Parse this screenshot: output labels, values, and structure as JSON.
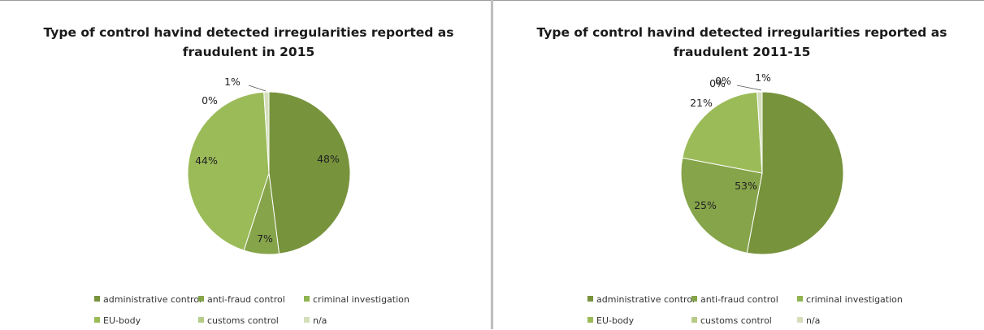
{
  "colors": {
    "administrative control": "#77933c",
    "anti-fraud control": "#86a44a",
    "criminal investigation": "#8fb451",
    "EU-body": "#9bbb59",
    "customs control": "#b5cb88",
    "n/a": "#d3dfbb"
  },
  "chart_data": [
    {
      "type": "pie",
      "title_lines": [
        "Type of control havind detected irregularities reported as",
        "fraudulent in 2015"
      ],
      "categories": [
        "administrative control",
        "anti-fraud control",
        "criminal investigation",
        "EU-body",
        "customs control",
        "n/a"
      ],
      "values": [
        48,
        7,
        0,
        44,
        0,
        1
      ],
      "data_labels": [
        "48%",
        "7%",
        "",
        "44%",
        "0%",
        "1%"
      ],
      "legend": {
        "position": "bottom",
        "rows": [
          [
            "administrative control",
            "anti-fraud control",
            "criminal investigation"
          ],
          [
            "EU-body",
            "customs control",
            "n/a"
          ]
        ]
      }
    },
    {
      "type": "pie",
      "title_lines": [
        "Type of control havind detected irregularities reported as",
        "fraudulent 2011-15"
      ],
      "categories": [
        "administrative control",
        "anti-fraud control",
        "criminal investigation",
        "EU-body",
        "customs control",
        "n/a"
      ],
      "values": [
        53,
        25,
        0,
        21,
        0,
        1
      ],
      "data_labels": [
        "53%",
        "25%",
        "0%",
        "21%",
        "0%",
        "1%"
      ],
      "legend": {
        "position": "bottom",
        "rows": [
          [
            "administrative control",
            "anti-fraud control",
            "criminal investigation"
          ],
          [
            "EU-body",
            "customs control",
            "n/a"
          ]
        ]
      }
    }
  ]
}
